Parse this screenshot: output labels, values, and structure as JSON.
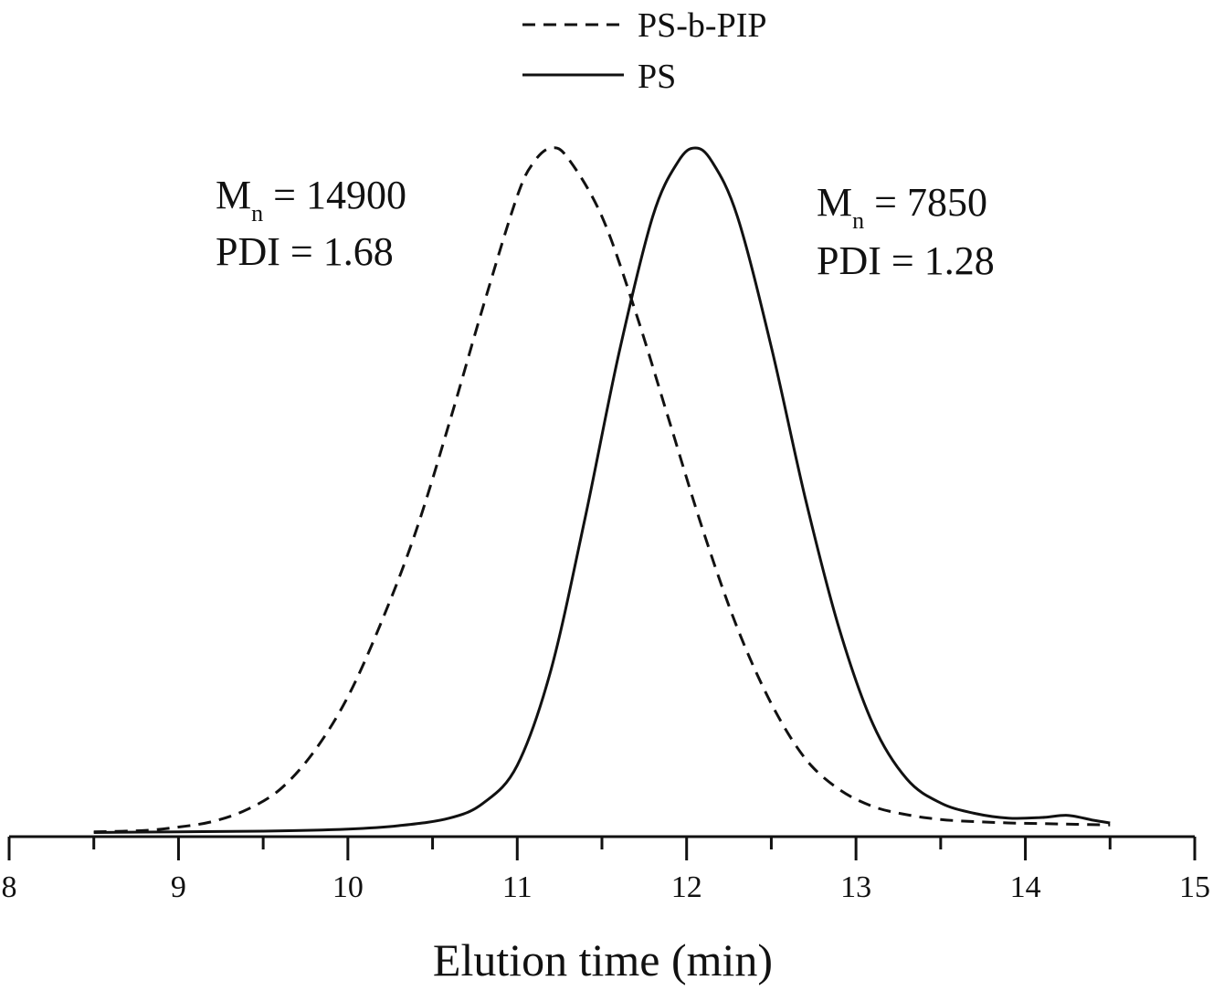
{
  "chart_data": {
    "type": "line",
    "xlabel": "Elution time (min)",
    "ylabel": "",
    "xlim": [
      8,
      15
    ],
    "ylim": [
      0,
      1
    ],
    "xticks": [
      "8",
      "9",
      "10",
      "11",
      "12",
      "13",
      "14",
      "15"
    ],
    "grid": false,
    "legend_position": "top-center",
    "series": [
      {
        "name": "PS-b-PIP",
        "style": "dashed",
        "x": [
          8.5,
          8.8,
          9.0,
          9.2,
          9.4,
          9.6,
          9.8,
          10.0,
          10.2,
          10.4,
          10.6,
          10.8,
          11.0,
          11.1,
          11.2,
          11.3,
          11.5,
          11.7,
          11.9,
          12.1,
          12.3,
          12.5,
          12.7,
          12.9,
          13.1,
          13.3,
          13.5,
          13.7,
          13.9,
          14.1,
          14.3,
          14.5
        ],
        "y": [
          0.003,
          0.005,
          0.01,
          0.018,
          0.035,
          0.065,
          0.12,
          0.2,
          0.31,
          0.44,
          0.6,
          0.77,
          0.93,
          0.98,
          1.0,
          0.985,
          0.9,
          0.76,
          0.6,
          0.44,
          0.3,
          0.19,
          0.11,
          0.065,
          0.04,
          0.028,
          0.021,
          0.018,
          0.016,
          0.015,
          0.014,
          0.013
        ]
      },
      {
        "name": "PS",
        "style": "solid",
        "x": [
          8.5,
          9.0,
          9.5,
          10.0,
          10.3,
          10.6,
          10.8,
          11.0,
          11.2,
          11.4,
          11.6,
          11.8,
          11.95,
          12.05,
          12.15,
          12.3,
          12.5,
          12.7,
          12.9,
          13.1,
          13.3,
          13.5,
          13.7,
          13.9,
          14.1,
          14.25,
          14.4,
          14.5
        ],
        "y": [
          0.002,
          0.003,
          0.004,
          0.007,
          0.012,
          0.023,
          0.045,
          0.1,
          0.24,
          0.46,
          0.7,
          0.9,
          0.98,
          1.0,
          0.98,
          0.9,
          0.71,
          0.49,
          0.3,
          0.16,
          0.08,
          0.045,
          0.03,
          0.023,
          0.024,
          0.027,
          0.02,
          0.016
        ]
      }
    ],
    "annotations": [
      {
        "series": "PS-b-PIP",
        "mn_label": "M",
        "mn_sub": "n",
        "mn_text": " = 14900",
        "pdi_text": "PDI = 1.68"
      },
      {
        "series": "PS",
        "mn_label": "M",
        "mn_sub": "n",
        "mn_text": " = 7850",
        "pdi_text": "PDI = 1.28"
      }
    ]
  }
}
